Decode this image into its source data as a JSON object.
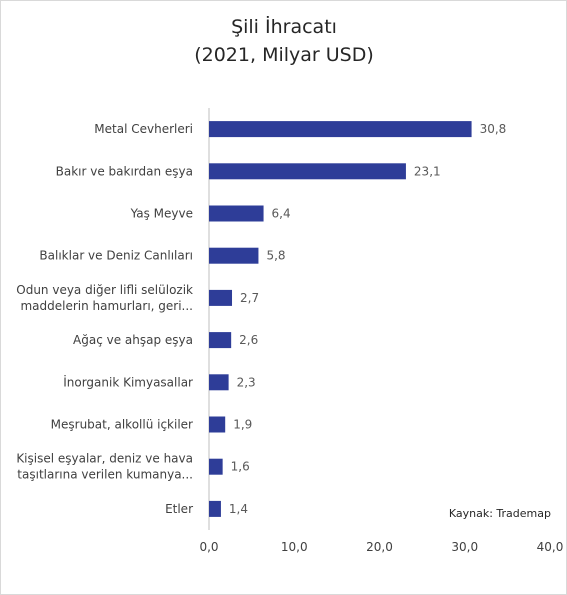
{
  "chart_data": {
    "type": "bar",
    "orientation": "horizontal",
    "title": [
      "Şili İhracatı",
      "(2021, Milyar USD)"
    ],
    "categories": [
      [
        "Metal Cevherleri"
      ],
      [
        "Bakır ve bakırdan eşya"
      ],
      [
        "Yaş Meyve"
      ],
      [
        "Balıklar ve Deniz Canlıları"
      ],
      [
        "Odun veya diğer lifli selülozik",
        "maddelerin hamurları, geri..."
      ],
      [
        "Ağaç ve ahşap eşya"
      ],
      [
        "İnorganik Kimyasallar"
      ],
      [
        "Meşrubat, alkollü içkiler"
      ],
      [
        "Kişisel eşyalar, deniz ve hava",
        "taşıtlarına verilen kumanya..."
      ],
      [
        "Etler"
      ]
    ],
    "values": [
      30.8,
      23.1,
      6.4,
      5.8,
      2.7,
      2.6,
      2.3,
      1.9,
      1.6,
      1.4
    ],
    "value_labels": [
      "30,8",
      "23,1",
      "6,4",
      "5,8",
      "2,7",
      "2,6",
      "2,3",
      "1,9",
      "1,6",
      "1,4"
    ],
    "xlim": [
      0,
      40
    ],
    "xticks": [
      0,
      10,
      20,
      30,
      40
    ],
    "xtick_labels": [
      "0,0",
      "10,0",
      "20,0",
      "30,0",
      "40,0"
    ],
    "xlabel": "",
    "ylabel": "",
    "grid": false,
    "bar_color": "#2e3d98",
    "source_note": "Kaynak: Trademap"
  }
}
